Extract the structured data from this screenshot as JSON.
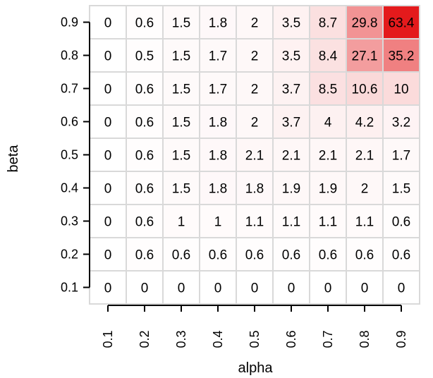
{
  "chart_data": {
    "type": "heatmap",
    "xlabel": "alpha",
    "ylabel": "beta",
    "x_categories": [
      "0.1",
      "0.2",
      "0.3",
      "0.4",
      "0.5",
      "0.6",
      "0.7",
      "0.8",
      "0.9"
    ],
    "y_categories": [
      "0.9",
      "0.8",
      "0.7",
      "0.6",
      "0.5",
      "0.4",
      "0.3",
      "0.2",
      "0.1"
    ],
    "values": [
      [
        "0",
        "0.6",
        "1.5",
        "1.8",
        "2",
        "3.5",
        "8.7",
        "29.8",
        "63.4"
      ],
      [
        "0",
        "0.5",
        "1.5",
        "1.7",
        "2",
        "3.5",
        "8.4",
        "27.1",
        "35.2"
      ],
      [
        "0",
        "0.6",
        "1.5",
        "1.7",
        "2",
        "3.7",
        "8.5",
        "10.6",
        "10"
      ],
      [
        "0",
        "0.6",
        "1.5",
        "1.8",
        "2",
        "3.7",
        "4",
        "4.2",
        "3.2"
      ],
      [
        "0",
        "0.6",
        "1.5",
        "1.8",
        "2.1",
        "2.1",
        "2.1",
        "2.1",
        "1.7"
      ],
      [
        "0",
        "0.6",
        "1.5",
        "1.8",
        "1.8",
        "1.9",
        "1.9",
        "2",
        "1.5"
      ],
      [
        "0",
        "0.6",
        "1",
        "1",
        "1.1",
        "1.1",
        "1.1",
        "1.1",
        "0.6"
      ],
      [
        "0",
        "0.6",
        "0.6",
        "0.6",
        "0.6",
        "0.6",
        "0.6",
        "0.6",
        "0.6"
      ],
      [
        "0",
        "0",
        "0",
        "0",
        "0",
        "0",
        "0",
        "0",
        "0"
      ]
    ],
    "color_scale": {
      "low": "#ffffff",
      "high": "#e41a1c",
      "max_value": 63.4
    },
    "grid": true,
    "grid_color": "#d9d9d9"
  }
}
